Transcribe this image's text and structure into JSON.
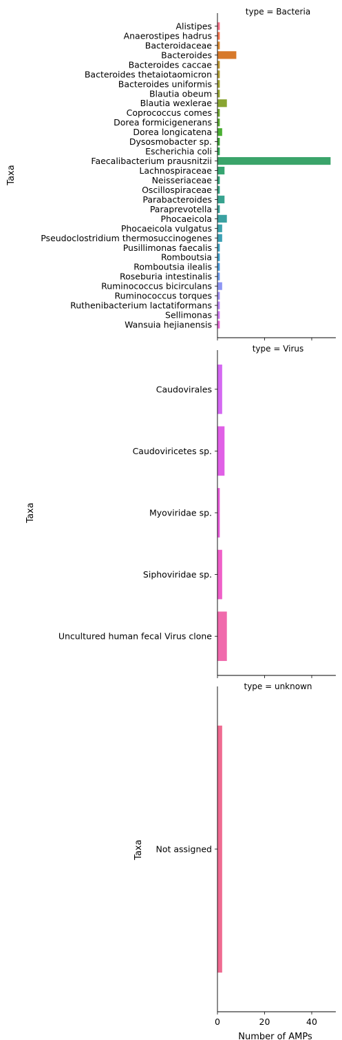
{
  "chart_data": {
    "type": "bar",
    "orientation": "horizontal",
    "xlabel": "Number of AMPs",
    "xlim": [
      0,
      50
    ],
    "xticks": [
      0,
      20,
      40
    ],
    "grid": false,
    "legend": "none",
    "panels": [
      {
        "title": "type = Bacteria",
        "ylabel": "Taxa",
        "categories": [
          "Alistipes",
          "Anaerostipes hadrus",
          "Bacteroidaceae",
          "Bacteroides",
          "Bacteroides caccae",
          "Bacteroides thetaiotaomicron",
          "Bacteroides uniformis",
          "Blautia obeum",
          "Blautia wexlerae",
          "Coprococcus comes",
          "Dorea formicigenerans",
          "Dorea longicatena",
          "Dysosmobacter sp.",
          "Escherichia coli",
          "Faecalibacterium prausnitzii",
          "Lachnospiraceae",
          "Neisseriaceae",
          "Oscillospiraceae",
          "Parabacteroides",
          "Paraprevotella",
          "Phocaeicola",
          "Phocaeicola vulgatus",
          "Pseudoclostridium thermosuccinogenes",
          "Pusillimonas faecalis",
          "Romboutsia",
          "Romboutsia ilealis",
          "Roseburia intestinalis",
          "Ruminococcus bicirculans",
          "Ruminococcus torques",
          "Ruthenibacterium lactatiformans",
          "Sellimonas",
          "Wansuia hejianensis"
        ],
        "values": [
          1,
          1,
          1,
          8,
          1,
          1,
          1,
          1,
          4,
          1,
          1,
          2,
          1,
          1,
          48,
          3,
          1,
          1,
          3,
          1,
          4,
          2,
          2,
          1,
          1,
          1,
          1,
          2,
          1,
          1,
          1,
          1
        ],
        "colors": [
          "#f77189",
          "#f7754f",
          "#dc8932",
          "#d7792a",
          "#be9632",
          "#b19d32",
          "#a2a232",
          "#97a431",
          "#89a531",
          "#70a831",
          "#5aab31",
          "#4aaf33",
          "#3ba336",
          "#34a555",
          "#3aa46a",
          "#36a571",
          "#36a37b",
          "#37a284",
          "#38a38f",
          "#39a197",
          "#3aa1a1",
          "#3ba3ac",
          "#3ca1b5",
          "#3ea2c3",
          "#3e9fcc",
          "#4a9cde",
          "#6e9ced",
          "#8e96f4",
          "#a28ff4",
          "#bc83f4",
          "#d278f3",
          "#e866d6"
        ]
      },
      {
        "title": "type = Virus",
        "ylabel": "Taxa",
        "categories": [
          "Caudovirales",
          "Caudoviricetes sp.",
          "Myoviridae sp.",
          "Siphoviridae sp.",
          "Uncultured human fecal Virus clone"
        ],
        "values": [
          2,
          3,
          1,
          2,
          4
        ],
        "colors": [
          "#d468f2",
          "#e060e6",
          "#e85bd9",
          "#ef5fc8",
          "#f06aac"
        ]
      },
      {
        "title": "type = unknown",
        "ylabel": "Taxa",
        "categories": [
          "Not assigned"
        ],
        "values": [
          2
        ],
        "colors": [
          "#ef6b91"
        ]
      }
    ]
  }
}
